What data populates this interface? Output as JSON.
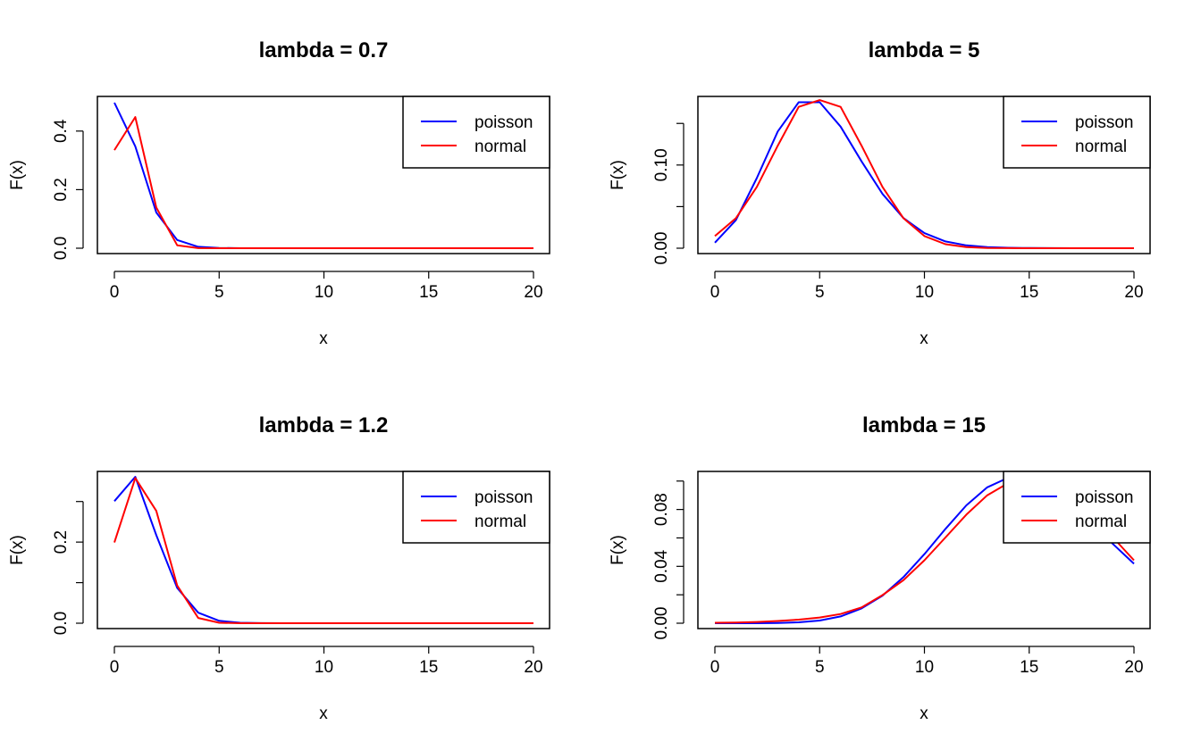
{
  "figure": {
    "layout": "2x2 grid"
  },
  "colors": {
    "poisson": "#0000ff",
    "normal": "#ff0000",
    "frame": "#000000",
    "background": "#ffffff"
  },
  "chart_data": [
    {
      "type": "line",
      "title": "lambda =  0.7",
      "xlabel": "x",
      "ylabel": "F(x)",
      "xlim": [
        0,
        20
      ],
      "ylim": [
        0,
        0.5
      ],
      "xticks": [
        0,
        5,
        10,
        15,
        20
      ],
      "xtick_labels": [
        "0",
        "5",
        "10",
        "15",
        "20"
      ],
      "yticks": [
        0.0,
        0.2,
        0.4
      ],
      "ytick_labels": [
        "0.0",
        "0.2",
        "0.4"
      ],
      "x": [
        0,
        1,
        2,
        3,
        4,
        5,
        6,
        7,
        8,
        9,
        10,
        11,
        12,
        13,
        14,
        15,
        16,
        17,
        18,
        19,
        20
      ],
      "legend": {
        "position": "top-right",
        "entries": [
          "poisson",
          "normal"
        ]
      },
      "series": [
        {
          "name": "poisson",
          "color": "#0000ff",
          "values": [
            0.497,
            0.348,
            0.122,
            0.028,
            0.005,
            0.001,
            0.0001,
            0,
            0,
            0,
            0,
            0,
            0,
            0,
            0,
            0,
            0,
            0,
            0,
            0,
            0
          ]
        },
        {
          "name": "normal",
          "color": "#ff0000",
          "values": [
            0.335,
            0.448,
            0.139,
            0.01,
            0.0002,
            0,
            0,
            0,
            0,
            0,
            0,
            0,
            0,
            0,
            0,
            0,
            0,
            0,
            0,
            0,
            0
          ]
        }
      ]
    },
    {
      "type": "line",
      "title": "lambda =  5",
      "xlabel": "x",
      "ylabel": "F(x)",
      "xlim": [
        0,
        20
      ],
      "ylim": [
        0,
        0.176
      ],
      "xticks": [
        0,
        5,
        10,
        15,
        20
      ],
      "xtick_labels": [
        "0",
        "5",
        "10",
        "15",
        "20"
      ],
      "yticks": [
        0.0,
        0.05,
        0.1,
        0.15
      ],
      "ytick_labels": [
        "0.00",
        "",
        "0.10",
        ""
      ],
      "x": [
        0,
        1,
        2,
        3,
        4,
        5,
        6,
        7,
        8,
        9,
        10,
        11,
        12,
        13,
        14,
        15,
        16,
        17,
        18,
        19,
        20
      ],
      "legend": {
        "position": "top-right",
        "entries": [
          "poisson",
          "normal"
        ]
      },
      "series": [
        {
          "name": "poisson",
          "color": "#0000ff",
          "values": [
            0.0067,
            0.0337,
            0.0842,
            0.1404,
            0.1755,
            0.1755,
            0.1462,
            0.1044,
            0.0653,
            0.0363,
            0.0181,
            0.0082,
            0.0034,
            0.0013,
            0.0005,
            0.0002,
            0.0001,
            0,
            0,
            0,
            0
          ]
        },
        {
          "name": "normal",
          "color": "#ff0000",
          "values": [
            0.0146,
            0.0361,
            0.0736,
            0.1233,
            0.1699,
            0.178,
            0.1699,
            0.1233,
            0.0736,
            0.0361,
            0.0146,
            0.0048,
            0.0013,
            0.0003,
            0.0001,
            0,
            0,
            0,
            0,
            0,
            0
          ]
        }
      ]
    },
    {
      "type": "line",
      "title": "lambda =  1.2",
      "xlabel": "x",
      "ylabel": "F(x)",
      "xlim": [
        0,
        20
      ],
      "ylim": [
        0,
        0.361
      ],
      "xticks": [
        0,
        5,
        10,
        15,
        20
      ],
      "xtick_labels": [
        "0",
        "5",
        "10",
        "15",
        "20"
      ],
      "yticks": [
        0.0,
        0.1,
        0.2,
        0.3
      ],
      "ytick_labels": [
        "0.0",
        "",
        "0.2",
        ""
      ],
      "x": [
        0,
        1,
        2,
        3,
        4,
        5,
        6,
        7,
        8,
        9,
        10,
        11,
        12,
        13,
        14,
        15,
        16,
        17,
        18,
        19,
        20
      ],
      "legend": {
        "position": "top-right",
        "entries": [
          "poisson",
          "normal"
        ]
      },
      "series": [
        {
          "name": "poisson",
          "color": "#0000ff",
          "values": [
            0.301,
            0.361,
            0.217,
            0.087,
            0.026,
            0.006,
            0.0012,
            0.0002,
            0,
            0,
            0,
            0,
            0,
            0,
            0,
            0,
            0,
            0,
            0,
            0,
            0
          ]
        },
        {
          "name": "normal",
          "color": "#ff0000",
          "values": [
            0.199,
            0.358,
            0.277,
            0.093,
            0.013,
            0.001,
            0,
            0,
            0,
            0,
            0,
            0,
            0,
            0,
            0,
            0,
            0,
            0,
            0,
            0,
            0
          ]
        }
      ]
    },
    {
      "type": "line",
      "title": "lambda =  15",
      "xlabel": "x",
      "ylabel": "F(x)",
      "xlim": [
        0,
        20
      ],
      "ylim": [
        0,
        0.103
      ],
      "xticks": [
        0,
        5,
        10,
        15,
        20
      ],
      "xtick_labels": [
        "0",
        "5",
        "10",
        "15",
        "20"
      ],
      "yticks": [
        0.0,
        0.02,
        0.04,
        0.06,
        0.08,
        0.1
      ],
      "ytick_labels": [
        "0.00",
        "",
        "0.04",
        "",
        "0.08",
        ""
      ],
      "x": [
        0,
        1,
        2,
        3,
        4,
        5,
        6,
        7,
        8,
        9,
        10,
        11,
        12,
        13,
        14,
        15,
        16,
        17,
        18,
        19,
        20
      ],
      "legend": {
        "position": "top-right",
        "entries": [
          "poisson",
          "normal"
        ]
      },
      "series": [
        {
          "name": "poisson",
          "color": "#0000ff",
          "values": [
            0,
            0,
            0,
            0.0002,
            0.0006,
            0.0019,
            0.0048,
            0.0104,
            0.0194,
            0.0324,
            0.0486,
            0.0663,
            0.0829,
            0.0956,
            0.1024,
            0.1024,
            0.096,
            0.0847,
            0.0706,
            0.0557,
            0.0418
          ]
        },
        {
          "name": "normal",
          "color": "#ff0000",
          "values": [
            0.0003,
            0.0005,
            0.0009,
            0.0016,
            0.0025,
            0.004,
            0.0065,
            0.0111,
            0.0198,
            0.0303,
            0.0443,
            0.0603,
            0.0764,
            0.09,
            0.0986,
            0.103,
            0.0986,
            0.09,
            0.0764,
            0.0603,
            0.0443
          ]
        }
      ]
    }
  ]
}
